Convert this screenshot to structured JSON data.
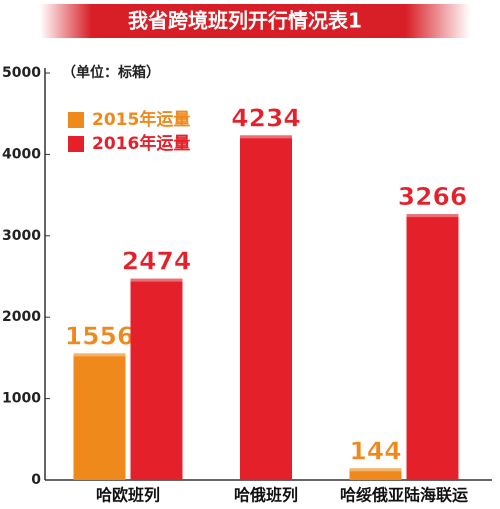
{
  "chart_data": {
    "type": "bar",
    "title": "我省跨境班列开行情况表1",
    "subtitle": "（单位：标箱）",
    "categories": [
      "哈欧班列",
      "哈俄班列",
      "哈绥俄亚陆海联运"
    ],
    "series": [
      {
        "name": "2015年运量",
        "color": "#f0891c",
        "values": [
          1556,
          null,
          144
        ]
      },
      {
        "name": "2016年运量",
        "color": "#e4202a",
        "values": [
          2474,
          4234,
          3266
        ]
      }
    ],
    "ylim": [
      0,
      5000
    ],
    "yticks": [
      0,
      1000,
      2000,
      3000,
      4000,
      5000
    ],
    "grid": false
  }
}
